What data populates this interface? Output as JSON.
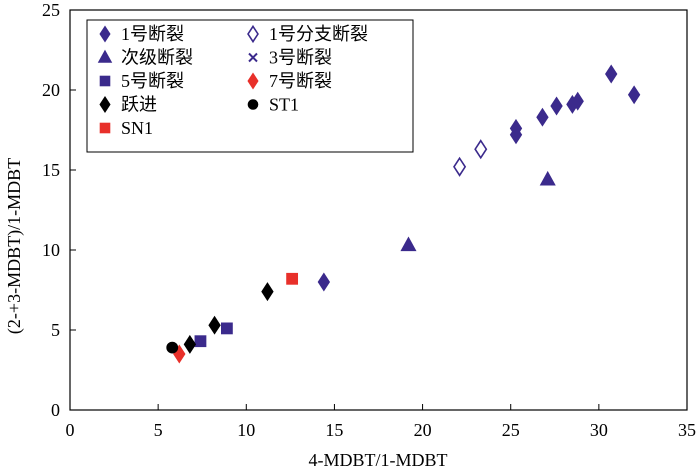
{
  "chart_data": {
    "type": "scatter",
    "xlabel": "4-MDBT/1-MDBT",
    "ylabel": "(2-+3-MDBT)/1-MDBT",
    "xlim": [
      0,
      35
    ],
    "ylim": [
      0,
      25
    ],
    "xticks": [
      "0",
      "5",
      "10",
      "15",
      "20",
      "25",
      "30",
      "35"
    ],
    "yticks": [
      "0",
      "5",
      "10",
      "15",
      "20",
      "25"
    ],
    "legend_position": "top-left",
    "grid": false,
    "series": [
      {
        "name": "1号断裂",
        "marker": "diamond",
        "color": "#3b2a8c",
        "filled": true,
        "x": [
          14.4,
          25.3,
          25.3,
          26.8,
          27.6,
          28.5,
          28.8,
          30.7,
          32.0
        ],
        "y": [
          8.0,
          17.2,
          17.6,
          18.3,
          19.0,
          19.1,
          19.3,
          21.0,
          19.7
        ]
      },
      {
        "name": "1号分支断裂",
        "marker": "diamond",
        "color": "#3b2a8c",
        "filled": false,
        "x": [
          22.1,
          23.3
        ],
        "y": [
          15.2,
          16.3
        ]
      },
      {
        "name": "次级断裂",
        "marker": "triangle",
        "color": "#3b2a8c",
        "filled": true,
        "x": [
          19.2,
          27.1
        ],
        "y": [
          10.3,
          14.4
        ]
      },
      {
        "name": "3号断裂",
        "marker": "x",
        "color": "#3b2a8c",
        "filled": true,
        "x": [],
        "y": []
      },
      {
        "name": "5号断裂",
        "marker": "square",
        "color": "#3b2a8c",
        "filled": true,
        "x": [
          7.4,
          8.9
        ],
        "y": [
          4.3,
          5.1
        ]
      },
      {
        "name": "7号断裂",
        "marker": "diamond",
        "color": "#e8302a",
        "filled": true,
        "x": [
          6.2
        ],
        "y": [
          3.5
        ]
      },
      {
        "name": "跃进",
        "marker": "diamond",
        "color": "#000000",
        "filled": true,
        "x": [
          6.8,
          8.2,
          11.2
        ],
        "y": [
          4.1,
          5.3,
          7.4
        ]
      },
      {
        "name": "ST1",
        "marker": "circle",
        "color": "#000000",
        "filled": true,
        "x": [
          5.8
        ],
        "y": [
          3.9
        ]
      },
      {
        "name": "SN1",
        "marker": "square",
        "color": "#e8302a",
        "filled": true,
        "x": [
          12.6
        ],
        "y": [
          8.2
        ]
      }
    ]
  }
}
